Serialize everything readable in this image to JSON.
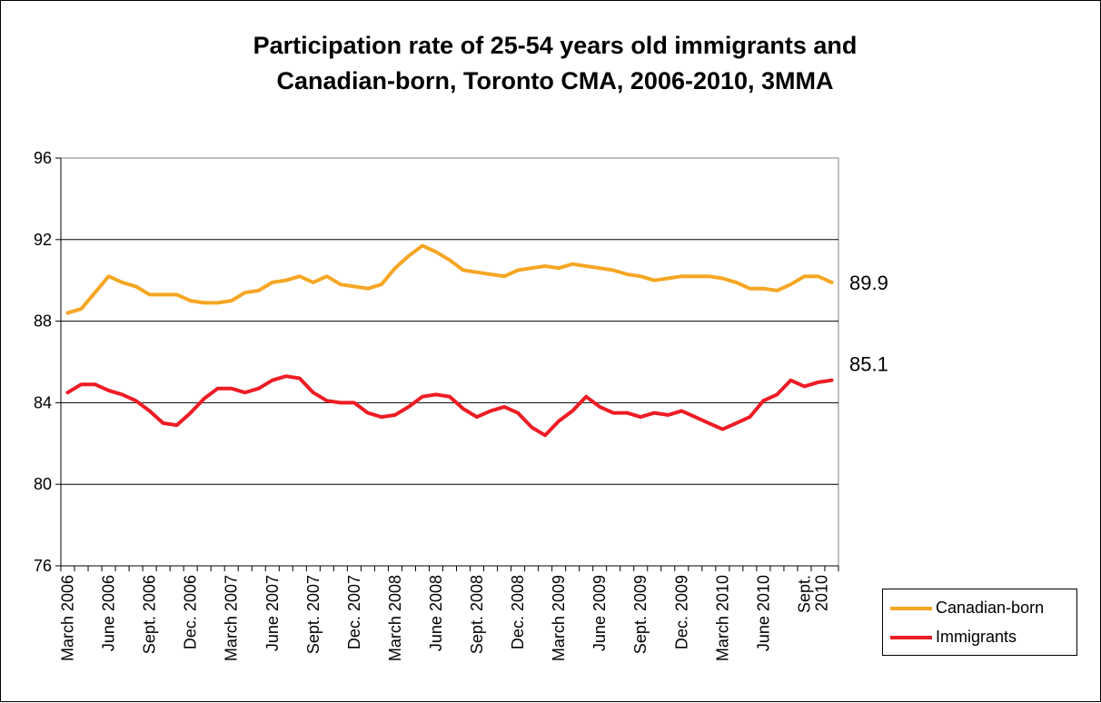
{
  "chart_data": {
    "type": "line",
    "title_lines": [
      "Participation rate of 25-54 years old immigrants and",
      "Canadian-born, Toronto CMA, 2006-2010, 3MMA"
    ],
    "xlabel": "",
    "ylabel": "",
    "ylim": [
      76,
      96
    ],
    "yticks": [
      76,
      80,
      84,
      88,
      92,
      96
    ],
    "grid": true,
    "legend_position": "bottom-right",
    "x_tick_labels": [
      "March 2006",
      "June 2006",
      "Sept. 2006",
      "Dec. 2006",
      "March 2007",
      "June 2007",
      "Sept. 2007",
      "Dec. 2007",
      "March 2008",
      "June 2008",
      "Sept. 2008",
      "Dec. 2008",
      "March 2009",
      "June 2009",
      "Sept. 2009",
      "Dec. 2009",
      "March 2010",
      "June 2010",
      "Sept."
    ],
    "x_tick_last_extra": "2010",
    "n_points": 57,
    "series": [
      {
        "name": "Canadian-born",
        "color": "#F5A623",
        "end_label": "89.9",
        "values": [
          88.4,
          88.6,
          89.4,
          90.2,
          89.9,
          89.7,
          89.3,
          89.3,
          89.3,
          89.0,
          88.9,
          88.9,
          89.0,
          89.4,
          89.5,
          89.9,
          90.0,
          90.2,
          89.9,
          90.2,
          89.8,
          89.7,
          89.6,
          89.8,
          90.6,
          91.2,
          91.7,
          91.4,
          91.0,
          90.5,
          90.4,
          90.3,
          90.2,
          90.5,
          90.6,
          90.7,
          90.6,
          90.8,
          90.7,
          90.6,
          90.5,
          90.3,
          90.2,
          90.0,
          90.1,
          90.2,
          90.2,
          90.2,
          90.1,
          89.9,
          89.6,
          89.6,
          89.5,
          89.8,
          90.2,
          90.2,
          89.9
        ]
      },
      {
        "name": "Immigrants",
        "color": "#EE1C25",
        "end_label": "85.1",
        "values": [
          84.5,
          84.9,
          84.9,
          84.6,
          84.4,
          84.1,
          83.6,
          83.0,
          82.9,
          83.5,
          84.2,
          84.7,
          84.7,
          84.5,
          84.7,
          85.1,
          85.3,
          85.2,
          84.5,
          84.1,
          84.0,
          84.0,
          83.5,
          83.3,
          83.4,
          83.8,
          84.3,
          84.4,
          84.3,
          83.7,
          83.3,
          83.6,
          83.8,
          83.5,
          82.8,
          82.4,
          83.1,
          83.6,
          84.3,
          83.8,
          83.5,
          83.5,
          83.3,
          83.5,
          83.4,
          83.6,
          83.3,
          83.0,
          82.7,
          83.0,
          83.3,
          84.1,
          84.4,
          85.1,
          84.8,
          85.0,
          85.1
        ]
      }
    ]
  }
}
